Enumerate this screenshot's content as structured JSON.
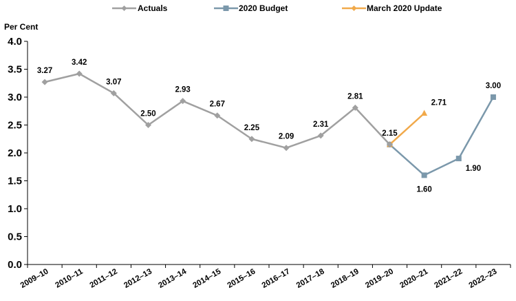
{
  "chart_data": {
    "type": "line",
    "ylabel": "Per Cent",
    "ylim": [
      0,
      4.0
    ],
    "ytick_labels": [
      "0.0",
      "0.5",
      "1.0",
      "1.5",
      "2.0",
      "2.5",
      "3.0",
      "3.5",
      "4.0"
    ],
    "categories": [
      "2009–10",
      "2010–11",
      "2011–12",
      "2012–13",
      "2013–14",
      "2014–15",
      "2015–16",
      "2016–17",
      "2017–18",
      "2018–19",
      "2019–20",
      "2020–21",
      "2021–22",
      "2022–23"
    ],
    "grid": false,
    "legend_position": "top",
    "series": [
      {
        "name": "Actuals",
        "color": "#a0a0a0",
        "marker": "diamond",
        "x": [
          "2009–10",
          "2010–11",
          "2011–12",
          "2012–13",
          "2013–14",
          "2014–15",
          "2015–16",
          "2016–17",
          "2017–18",
          "2018–19",
          "2019–20"
        ],
        "values": [
          3.27,
          3.42,
          3.07,
          2.5,
          2.93,
          2.67,
          2.25,
          2.09,
          2.31,
          2.81,
          2.15
        ],
        "labels": [
          "3.27",
          "3.42",
          "3.07",
          "2.50",
          "2.93",
          "2.67",
          "2.25",
          "2.09",
          "2.31",
          "2.81",
          "2.15"
        ],
        "label_position": [
          "above",
          "above",
          "above",
          "above",
          "above",
          "above",
          "above",
          "above",
          "above",
          "above",
          "above"
        ]
      },
      {
        "name": "2020 Budget",
        "color": "#7b98ab",
        "marker": "square",
        "x": [
          "2019–20",
          "2020–21",
          "2021–22",
          "2022–23"
        ],
        "values": [
          2.15,
          1.6,
          1.9,
          3.0
        ],
        "labels": [
          null,
          "1.60",
          "1.90",
          "3.00"
        ],
        "label_position": [
          "none",
          "below",
          "right",
          "above"
        ]
      },
      {
        "name": "March 2020 Update",
        "color": "#f1a94a",
        "marker": "triangle",
        "x": [
          "2019–20",
          "2020–21"
        ],
        "values": [
          2.15,
          2.71
        ],
        "labels": [
          null,
          "2.71"
        ],
        "label_position": [
          "none",
          "right"
        ]
      }
    ]
  }
}
